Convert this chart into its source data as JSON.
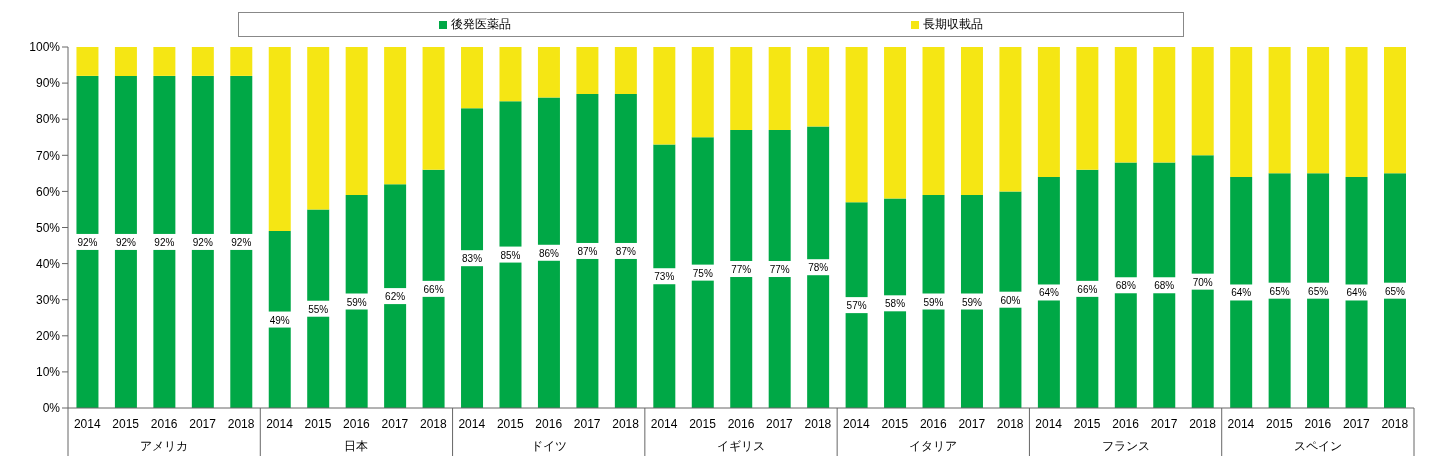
{
  "chart_data": {
    "type": "bar",
    "stacked": true,
    "categories": [
      "2014",
      "2015",
      "2016",
      "2017",
      "2018",
      "2014",
      "2015",
      "2016",
      "2017",
      "2018",
      "2014",
      "2015",
      "2016",
      "2017",
      "2018",
      "2014",
      "2015",
      "2016",
      "2017",
      "2018",
      "2014",
      "2015",
      "2016",
      "2017",
      "2018",
      "2014",
      "2015",
      "2016",
      "2017",
      "2018",
      "2014",
      "2015",
      "2016",
      "2017",
      "2018"
    ],
    "annotations": [
      "アメリカ",
      "日本",
      "ドイツ",
      "イギリス",
      "イタリア",
      "フランス",
      "スペイン"
    ],
    "series": [
      {
        "name": "後発医薬品",
        "color": "#00a846",
        "values": [
          92,
          92,
          92,
          92,
          92,
          49,
          55,
          59,
          62,
          66,
          83,
          85,
          86,
          87,
          87,
          73,
          75,
          77,
          77,
          78,
          57,
          58,
          59,
          59,
          60,
          64,
          66,
          68,
          68,
          70,
          64,
          65,
          65,
          64,
          65
        ],
        "value_labels": [
          "92%",
          "92%",
          "92%",
          "92%",
          "92%",
          "49%",
          "55%",
          "59%",
          "62%",
          "66%",
          "83%",
          "85%",
          "86%",
          "87%",
          "87%",
          "73%",
          "75%",
          "77%",
          "77%",
          "78%",
          "57%",
          "58%",
          "59%",
          "59%",
          "60%",
          "64%",
          "66%",
          "68%",
          "68%",
          "70%",
          "64%",
          "65%",
          "65%",
          "64%",
          "65%"
        ]
      },
      {
        "name": "長期収載品",
        "color": "#f5e614",
        "values": [
          8,
          8,
          8,
          8,
          8,
          51,
          45,
          41,
          38,
          34,
          17,
          15,
          14,
          13,
          13,
          27,
          25,
          23,
          23,
          22,
          43,
          42,
          41,
          41,
          40,
          36,
          34,
          32,
          32,
          30,
          36,
          35,
          35,
          36,
          35
        ]
      }
    ],
    "ylim": [
      0,
      100
    ],
    "yticks": [
      {
        "value": 0,
        "label": "0%"
      },
      {
        "value": 10,
        "label": "10%"
      },
      {
        "value": 20,
        "label": "20%"
      },
      {
        "value": 30,
        "label": "30%"
      },
      {
        "value": 40,
        "label": "40%"
      },
      {
        "value": 50,
        "label": "50%"
      },
      {
        "value": 60,
        "label": "60%"
      },
      {
        "value": 70,
        "label": "70%"
      },
      {
        "value": 80,
        "label": "80%"
      },
      {
        "value": 90,
        "label": "90%"
      },
      {
        "value": 100,
        "label": "100%"
      }
    ],
    "grid": false,
    "legend": "top"
  }
}
